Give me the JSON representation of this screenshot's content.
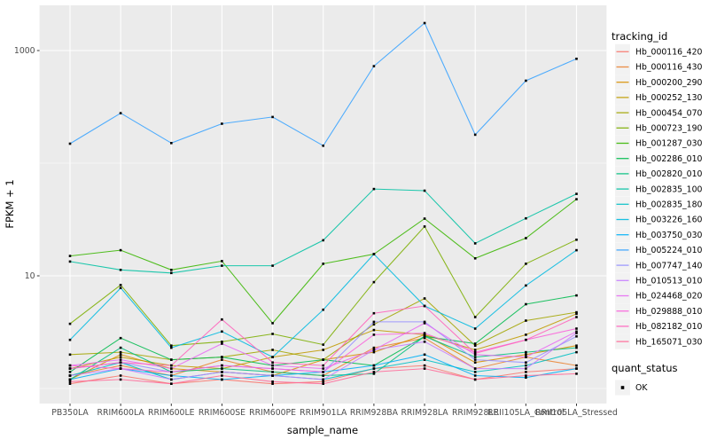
{
  "figure": {
    "y_axis": {
      "title": "FPKM + 1",
      "tick_labels": [
        "1000",
        "10"
      ],
      "tick_values": [
        1000,
        10
      ]
    },
    "x_axis": {
      "title": "sample_name"
    },
    "legend": {
      "tracking_title": "tracking_id",
      "quant_title": "quant_status",
      "quant_ok_label": "OK",
      "quant_marker_color": "#000000",
      "key_fill": "#f2f2f2"
    },
    "panel_bg": "#ebebeb",
    "grid_color": "#ffffff",
    "point_color": "#000000"
  },
  "chart_data": {
    "type": "line",
    "title": "",
    "xlabel": "sample_name",
    "ylabel": "FPKM + 1",
    "y_scale": "log10",
    "y_ticks": [
      10,
      1000
    ],
    "y_minor": [
      1,
      100
    ],
    "ylim_log": [
      0.92,
      3.42
    ],
    "grid": "ggplot-gray-major-minor",
    "legend_position": "right",
    "categories": [
      "PB350LA",
      "RRIM600LA",
      "RRIM600LE",
      "RRIM600SE",
      "RRIM600PE",
      "RRIM901LA",
      "RRIM928BA",
      "RRIM928LA",
      "RRIM928LE",
      "RRII105LA_Control",
      "RRII105LA_Stressed"
    ],
    "series": [
      {
        "name": "Hb_000116_420",
        "color": "#F8766D",
        "values": [
          1.1,
          1.3,
          1.1,
          1.2,
          1.1,
          1.15,
          1.5,
          1.6,
          1.2,
          1.4,
          1.5
        ]
      },
      {
        "name": "Hb_000116_430",
        "color": "#EA8331",
        "values": [
          1.3,
          1.6,
          1.3,
          1.8,
          1.4,
          1.3,
          2.3,
          2.8,
          1.5,
          1.9,
          1.6
        ]
      },
      {
        "name": "Hb_000200_290",
        "color": "#D89000",
        "values": [
          1.2,
          2.0,
          1.5,
          1.4,
          1.3,
          1.8,
          2.1,
          3.0,
          1.7,
          2.0,
          2.4
        ]
      },
      {
        "name": "Hb_000252_130",
        "color": "#C09B00",
        "values": [
          1.5,
          1.9,
          1.6,
          1.5,
          1.9,
          2.2,
          3.3,
          3.0,
          2.2,
          3.0,
          4.6
        ]
      },
      {
        "name": "Hb_000454_070",
        "color": "#A3A500",
        "values": [
          2.0,
          2.1,
          1.8,
          1.9,
          2.2,
          1.8,
          3.7,
          6.3,
          2.4,
          4.0,
          4.75
        ]
      },
      {
        "name": "Hb_000723_190",
        "color": "#7CAE00",
        "values": [
          3.75,
          8.3,
          2.4,
          2.6,
          3.05,
          2.45,
          8.8,
          27.4,
          4.3,
          12.8,
          20.9
        ]
      },
      {
        "name": "Hb_001287_030",
        "color": "#39B600",
        "values": [
          15.0,
          16.9,
          11.3,
          13.5,
          3.8,
          12.8,
          15.6,
          32.2,
          14.3,
          21.6,
          47.9
        ]
      },
      {
        "name": "Hb_002286_010",
        "color": "#00BB4E",
        "values": [
          1.4,
          2.8,
          1.8,
          1.9,
          1.6,
          1.8,
          1.6,
          2.9,
          2.5,
          5.6,
          6.7
        ]
      },
      {
        "name": "Hb_002820_010",
        "color": "#00BF7D",
        "values": [
          1.2,
          2.3,
          1.4,
          1.5,
          1.4,
          1.3,
          1.35,
          2.9,
          1.9,
          2.1,
          2.3
        ]
      },
      {
        "name": "Hb_002835_100",
        "color": "#00C1A3",
        "values": [
          13.4,
          11.3,
          10.6,
          12.3,
          12.3,
          20.7,
          59.0,
          57.0,
          19.4,
          32.4,
          53.4
        ]
      },
      {
        "name": "Hb_002835_180",
        "color": "#00BFC4",
        "values": [
          1.3,
          1.7,
          1.2,
          1.4,
          1.3,
          1.2,
          1.5,
          1.8,
          1.4,
          1.6,
          2.1
        ]
      },
      {
        "name": "Hb_003226_160",
        "color": "#00BAE0",
        "values": [
          2.7,
          7.8,
          2.3,
          3.2,
          1.9,
          5.0,
          15.6,
          5.4,
          3.4,
          8.2,
          16.9
        ]
      },
      {
        "name": "Hb_003750_030",
        "color": "#00B0F6",
        "values": [
          1.2,
          1.5,
          1.3,
          1.2,
          1.3,
          1.4,
          1.6,
          2.0,
          1.3,
          1.25,
          1.5
        ]
      },
      {
        "name": "Hb_005224_010",
        "color": "#35A2FF",
        "values": [
          149,
          278,
          151,
          224,
          257,
          143,
          727,
          1754,
          179,
          540,
          845
        ]
      },
      {
        "name": "Hb_007747_140",
        "color": "#9590FF",
        "values": [
          1.5,
          1.7,
          1.4,
          1.6,
          1.5,
          1.4,
          3.9,
          3.9,
          1.8,
          1.7,
          2.9
        ]
      },
      {
        "name": "Hb_010513_010",
        "color": "#C77CFF",
        "values": [
          1.3,
          1.5,
          1.2,
          1.4,
          1.3,
          1.2,
          2.2,
          2.6,
          1.5,
          1.5,
          3.1
        ]
      },
      {
        "name": "Hb_024468_020",
        "color": "#E76BF3",
        "values": [
          1.6,
          1.8,
          1.5,
          2.5,
          1.6,
          1.5,
          2.2,
          3.8,
          2.0,
          1.9,
          3.2
        ]
      },
      {
        "name": "Hb_029888_010",
        "color": "#FA62DB",
        "values": [
          1.6,
          1.5,
          1.4,
          1.6,
          1.5,
          1.4,
          3.0,
          3.1,
          2.1,
          2.7,
          3.4
        ]
      },
      {
        "name": "Hb_082182_010",
        "color": "#FF62BC",
        "values": [
          1.5,
          1.7,
          1.6,
          4.1,
          1.7,
          1.6,
          4.65,
          5.4,
          2.05,
          2.7,
          4.3
        ]
      },
      {
        "name": "Hb_165071_030",
        "color": "#FF6A98",
        "values": [
          1.15,
          1.2,
          1.1,
          1.3,
          1.15,
          1.1,
          1.4,
          1.5,
          1.2,
          1.3,
          1.35
        ]
      }
    ]
  }
}
